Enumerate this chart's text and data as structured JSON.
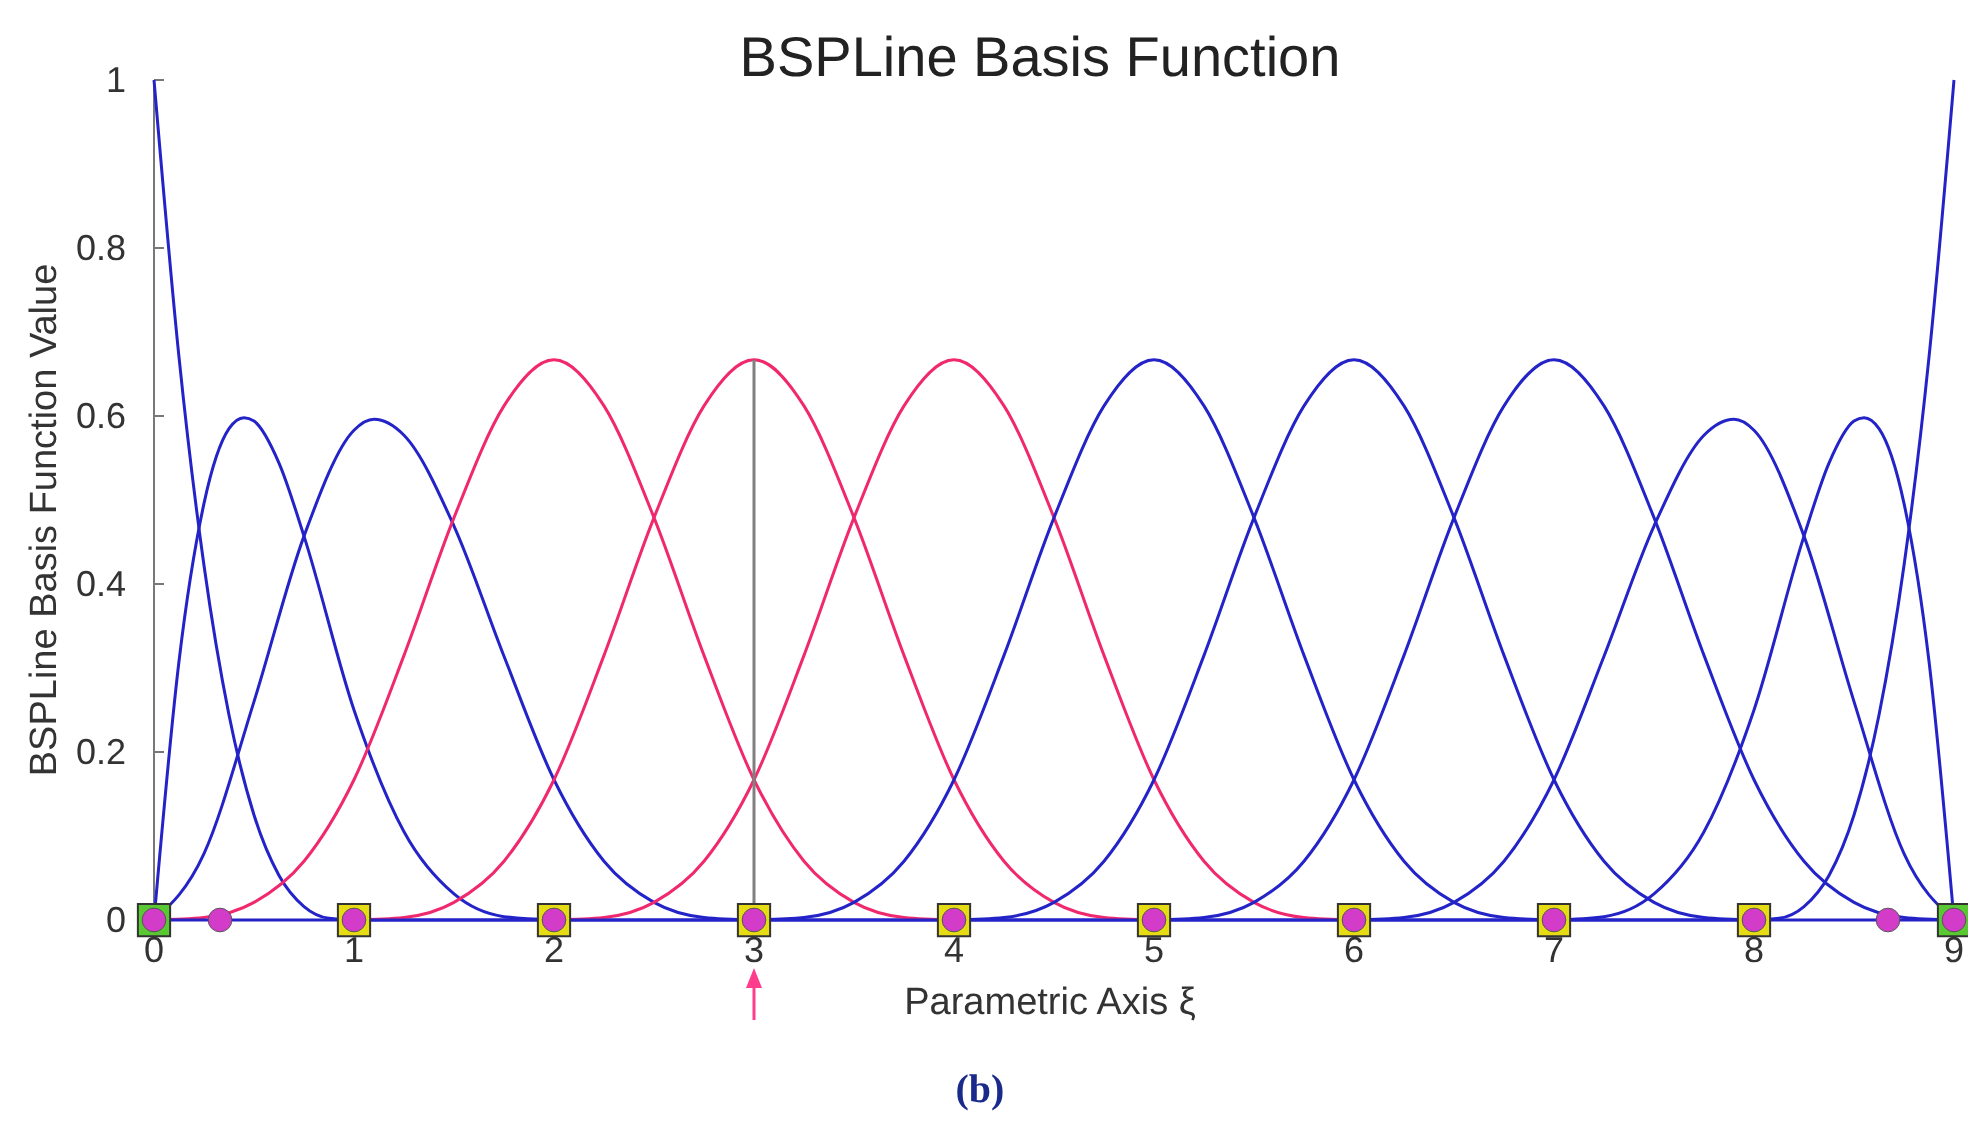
{
  "chart_data": {
    "type": "line",
    "title": "BSPLine Basis Function",
    "xlabel": "Parametric Axis ξ",
    "ylabel": "BSPLine Basis Function Value",
    "annotations": [
      "(b)"
    ],
    "xlim": [
      0,
      9
    ],
    "ylim": [
      0,
      1
    ],
    "xticks": [
      0,
      1,
      2,
      3,
      4,
      5,
      6,
      7,
      8,
      9
    ],
    "yticks": [
      0,
      0.2,
      0.4,
      0.6,
      0.8,
      1
    ],
    "grid": false,
    "series": [
      {
        "color": "#2323c8",
        "x": [
          0,
          0.125,
          0.25,
          0.375,
          0.5,
          0.625,
          0.75,
          0.875,
          1,
          9
        ],
        "values": [
          1,
          0.67,
          0.422,
          0.244,
          0.125,
          0.053,
          0.016,
          0.002,
          0,
          0
        ]
      },
      {
        "color": "#2323c8",
        "x": [
          0,
          0.125,
          0.25,
          0.375,
          0.45,
          0.5,
          0.625,
          0.75,
          1,
          1.25,
          1.5,
          1.75,
          2
        ],
        "values": [
          0,
          0.308,
          0.496,
          0.585,
          0.598,
          0.594,
          0.544,
          0.457,
          0.25,
          0.105,
          0.031,
          0.004,
          0
        ]
      },
      {
        "color": "#2323c8",
        "x": [
          0,
          0.25,
          0.5,
          0.75,
          1,
          1.1,
          1.25,
          1.5,
          1.75,
          2,
          2.25,
          2.5,
          2.75,
          3
        ],
        "values": [
          0,
          0.079,
          0.26,
          0.457,
          0.583,
          0.596,
          0.577,
          0.469,
          0.314,
          0.167,
          0.07,
          0.021,
          0.003,
          0
        ]
      },
      {
        "color": "#f0286e",
        "x": [
          0,
          0.25,
          0.5,
          0.75,
          1,
          1.25,
          1.5,
          1.75,
          2,
          2.25,
          2.5,
          2.75,
          3,
          3.25,
          3.5,
          3.75,
          4
        ],
        "values": [
          0,
          0.003,
          0.021,
          0.07,
          0.167,
          0.315,
          0.479,
          0.612,
          0.667,
          0.612,
          0.479,
          0.315,
          0.167,
          0.07,
          0.021,
          0.003,
          0
        ]
      },
      {
        "color": "#f0286e",
        "x": [
          1,
          1.25,
          1.5,
          1.75,
          2,
          2.25,
          2.5,
          2.75,
          3,
          3.25,
          3.5,
          3.75,
          4,
          4.25,
          4.5,
          4.75,
          5
        ],
        "values": [
          0,
          0.003,
          0.021,
          0.07,
          0.167,
          0.315,
          0.479,
          0.612,
          0.667,
          0.612,
          0.479,
          0.315,
          0.167,
          0.07,
          0.021,
          0.003,
          0
        ]
      },
      {
        "color": "#f0286e",
        "x": [
          2,
          2.25,
          2.5,
          2.75,
          3,
          3.25,
          3.5,
          3.75,
          4,
          4.25,
          4.5,
          4.75,
          5,
          5.25,
          5.5,
          5.75,
          6
        ],
        "values": [
          0,
          0.003,
          0.021,
          0.07,
          0.167,
          0.315,
          0.479,
          0.612,
          0.667,
          0.612,
          0.479,
          0.315,
          0.167,
          0.07,
          0.021,
          0.003,
          0
        ]
      },
      {
        "color": "#2323c8",
        "x": [
          3,
          3.25,
          3.5,
          3.75,
          4,
          4.25,
          4.5,
          4.75,
          5,
          5.25,
          5.5,
          5.75,
          6,
          6.25,
          6.5,
          6.75,
          7
        ],
        "values": [
          0,
          0.003,
          0.021,
          0.07,
          0.167,
          0.315,
          0.479,
          0.612,
          0.667,
          0.612,
          0.479,
          0.315,
          0.167,
          0.07,
          0.021,
          0.003,
          0
        ]
      },
      {
        "color": "#2323c8",
        "x": [
          4,
          4.25,
          4.5,
          4.75,
          5,
          5.25,
          5.5,
          5.75,
          6,
          6.25,
          6.5,
          6.75,
          7,
          7.25,
          7.5,
          7.75,
          8
        ],
        "values": [
          0,
          0.003,
          0.021,
          0.07,
          0.167,
          0.315,
          0.479,
          0.612,
          0.667,
          0.612,
          0.479,
          0.315,
          0.167,
          0.07,
          0.021,
          0.003,
          0
        ]
      },
      {
        "color": "#2323c8",
        "x": [
          5,
          5.25,
          5.5,
          5.75,
          6,
          6.25,
          6.5,
          6.75,
          7,
          7.25,
          7.5,
          7.75,
          8,
          8.25,
          8.5,
          8.75,
          9
        ],
        "values": [
          0,
          0.003,
          0.021,
          0.07,
          0.167,
          0.315,
          0.479,
          0.612,
          0.667,
          0.612,
          0.479,
          0.315,
          0.167,
          0.07,
          0.021,
          0.003,
          0
        ]
      },
      {
        "color": "#2323c8",
        "x": [
          6,
          6.25,
          6.5,
          6.75,
          7,
          7.25,
          7.5,
          7.75,
          7.9,
          8,
          8.25,
          8.5,
          8.75,
          9
        ],
        "values": [
          0,
          0.003,
          0.021,
          0.07,
          0.167,
          0.314,
          0.469,
          0.577,
          0.596,
          0.583,
          0.457,
          0.26,
          0.079,
          0
        ]
      },
      {
        "color": "#2323c8",
        "x": [
          7,
          7.25,
          7.5,
          7.75,
          8,
          8.25,
          8.375,
          8.5,
          8.55,
          8.625,
          8.75,
          8.875,
          9
        ],
        "values": [
          0,
          0.004,
          0.031,
          0.105,
          0.25,
          0.457,
          0.544,
          0.594,
          0.598,
          0.585,
          0.496,
          0.308,
          0
        ]
      },
      {
        "color": "#2323c8",
        "x": [
          0,
          8,
          8.125,
          8.25,
          8.375,
          8.5,
          8.625,
          8.75,
          8.875,
          9
        ],
        "values": [
          0,
          0,
          0.002,
          0.016,
          0.053,
          0.125,
          0.244,
          0.422,
          0.67,
          1
        ]
      },
      {
        "color": "#808080",
        "x": [
          3,
          3
        ],
        "values": [
          0,
          0.667
        ]
      },
      {
        "type": "scatter",
        "marker": "square",
        "x": [
          0,
          1,
          2,
          3,
          4,
          5,
          6,
          7,
          8,
          9
        ],
        "values": [
          0,
          0,
          0,
          0,
          0,
          0,
          0,
          0,
          0,
          0
        ],
        "colors": [
          "#5ac832",
          "#e6dc14",
          "#e6dc14",
          "#e6dc14",
          "#e6dc14",
          "#e6dc14",
          "#e6dc14",
          "#e6dc14",
          "#e6dc14",
          "#5ac832"
        ]
      },
      {
        "type": "scatter",
        "marker": "circle",
        "color": "#d23cc8",
        "x": [
          0,
          0.33,
          1,
          2,
          3,
          4,
          5,
          6,
          7,
          8,
          8.67,
          9
        ],
        "values": [
          0,
          0,
          0,
          0,
          0,
          0,
          0,
          0,
          0,
          0,
          0,
          0
        ]
      }
    ]
  }
}
